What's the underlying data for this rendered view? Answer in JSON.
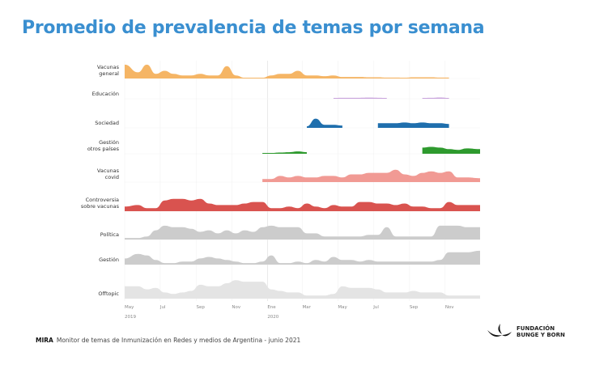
{
  "title": "Promedio de prevalencia de temas por semana",
  "footer": {
    "brand": "MIRA",
    "text": "Monitor de temas de Inmunización en Redes y medios de Argentina - junio 2021"
  },
  "logo": {
    "line1": "FUNDACIÓN",
    "line2": "BUNGE Y BORN"
  },
  "chart_data": {
    "type": "area",
    "subtype": "ridgeline",
    "x_ticks": [
      {
        "label": "May",
        "sub": "2019",
        "date": "2019-05-01"
      },
      {
        "label": "Jul",
        "date": "2019-07-01"
      },
      {
        "label": "Sep",
        "date": "2019-09-01"
      },
      {
        "label": "Nov",
        "date": "2019-11-01"
      },
      {
        "label": "Ene",
        "sub": "2020",
        "date": "2020-01-01"
      },
      {
        "label": "Mar",
        "date": "2020-03-01"
      },
      {
        "label": "May",
        "date": "2020-05-01"
      },
      {
        "label": "Jul",
        "date": "2020-07-01"
      },
      {
        "label": "Sep",
        "date": "2020-09-01"
      },
      {
        "label": "Nov",
        "date": "2020-11-01"
      }
    ],
    "x_start": "2019-05-01",
    "x_end": "2020-12-31",
    "sampling": "semi-monthly",
    "grid": true,
    "series": [
      {
        "name": "Vacunas general",
        "color": "#f5b565",
        "values": [
          9,
          4,
          9,
          3,
          5,
          3,
          2,
          2,
          3,
          2,
          2,
          8,
          2,
          0.5,
          0.5,
          0.5,
          2,
          3,
          3,
          5,
          2,
          2,
          1.5,
          2,
          1,
          1,
          1,
          0.8,
          0.8,
          0.6,
          0.6,
          0.5,
          0.8,
          0.8,
          0.8,
          0.6,
          0.6,
          null,
          null,
          null
        ]
      },
      {
        "name": "Educación",
        "color": "#c9a3dc",
        "values": [
          null,
          null,
          null,
          null,
          null,
          null,
          null,
          null,
          null,
          null,
          null,
          null,
          null,
          null,
          null,
          null,
          null,
          null,
          null,
          null,
          null,
          null,
          null,
          0.5,
          0.6,
          0.6,
          0.6,
          0.7,
          0.6,
          0.5,
          null,
          null,
          null,
          0.5,
          0.6,
          0.8,
          0.5,
          null,
          null,
          null
        ]
      },
      {
        "name": "Sociedad",
        "color": "#1f6fad",
        "values": [
          null,
          null,
          null,
          null,
          null,
          null,
          null,
          null,
          null,
          null,
          null,
          null,
          null,
          null,
          null,
          null,
          null,
          null,
          null,
          null,
          1,
          6,
          2,
          2,
          1.5,
          null,
          null,
          null,
          3,
          3,
          3,
          3.5,
          3,
          3.5,
          3,
          3,
          2.5,
          null,
          null,
          null
        ]
      },
      {
        "name": "Gestión otros países",
        "color": "#2e9a2e",
        "values": [
          null,
          null,
          null,
          null,
          null,
          null,
          null,
          null,
          null,
          null,
          null,
          null,
          null,
          null,
          null,
          0.5,
          0.5,
          0.8,
          1,
          1.5,
          1,
          null,
          null,
          null,
          null,
          null,
          null,
          null,
          null,
          null,
          null,
          null,
          null,
          4,
          4.5,
          4,
          3,
          2.5,
          3.5,
          3
        ]
      },
      {
        "name": "Vacunas covid",
        "color": "#f19a94",
        "values": [
          null,
          null,
          null,
          null,
          null,
          null,
          null,
          null,
          null,
          null,
          null,
          null,
          null,
          null,
          null,
          2,
          2,
          4,
          3,
          4,
          3,
          3,
          4,
          4,
          3,
          5,
          5,
          6,
          6,
          6,
          8,
          5,
          4,
          6,
          7,
          6,
          7,
          3,
          3,
          2.5
        ]
      },
      {
        "name": "Controversia sobre vacunas",
        "color": "#d9534f",
        "values": [
          3,
          4,
          2,
          2,
          7,
          8,
          8,
          7,
          8,
          5,
          4,
          4,
          4,
          5,
          6,
          6,
          2,
          2,
          3,
          2,
          5,
          3,
          2,
          4,
          3,
          3,
          6,
          6,
          5,
          5,
          4,
          5,
          3,
          3,
          2,
          2,
          6,
          4,
          4,
          4
        ]
      },
      {
        "name": "Política",
        "color": "#cccccc",
        "values": [
          1,
          1,
          2,
          6,
          9,
          8,
          8,
          7,
          5,
          6,
          4,
          6,
          4,
          6,
          5,
          8,
          9,
          8,
          8,
          8,
          4,
          4,
          2,
          2,
          2,
          2,
          2,
          3,
          3,
          8,
          2,
          2,
          2,
          2,
          2,
          9,
          9,
          9,
          8,
          8
        ]
      },
      {
        "name": "Gestión",
        "color": "#cccccc",
        "values": [
          4,
          7,
          6,
          3,
          1,
          1,
          2,
          2,
          4,
          5,
          4,
          3,
          2,
          1,
          1,
          2,
          6,
          1,
          1,
          2,
          1,
          3,
          2,
          5,
          3,
          3,
          2,
          3,
          2,
          2,
          2,
          2,
          2,
          2,
          2,
          3,
          8,
          8,
          8,
          9
        ]
      },
      {
        "name": "Offtopic",
        "color": "#e4e4e4",
        "values": [
          8,
          8,
          6,
          7,
          4,
          3,
          4,
          5,
          9,
          8,
          8,
          10,
          12,
          11,
          11,
          11,
          6,
          5,
          4,
          4,
          2,
          2,
          2,
          3,
          8,
          7,
          7,
          7,
          6,
          4,
          4,
          4,
          5,
          4,
          4,
          4,
          2,
          2,
          2,
          2
        ]
      }
    ]
  }
}
